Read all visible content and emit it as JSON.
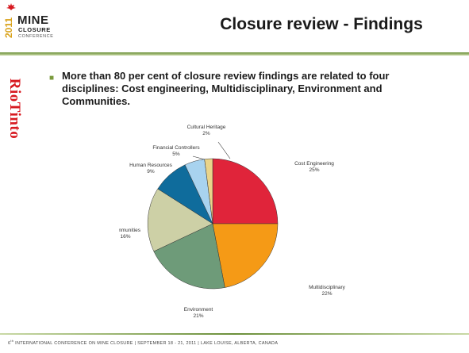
{
  "logo": {
    "year": "2011",
    "name": "MINE",
    "subtitle": "CLOSURE",
    "tagline": "CONFERENCE"
  },
  "slide": {
    "title": "Closure review - Findings",
    "sponsor": "RioTinto",
    "bullet": "More than 80 per cent of closure review findings are related to four disciplines: Cost engineering, Multidisciplinary, Environment and Communities."
  },
  "chart_data": {
    "type": "pie",
    "title": "",
    "slices": [
      {
        "label": "Cost Engineering",
        "value": 25,
        "pct": "25%",
        "color": "#e0243a"
      },
      {
        "label": "Multidisciplinary",
        "value": 22,
        "pct": "22%",
        "color": "#f59a16"
      },
      {
        "label": "Environment",
        "value": 21,
        "pct": "21%",
        "color": "#6e9b79"
      },
      {
        "label": "Communities",
        "value": 16,
        "pct": "16%",
        "color": "#cdd0a6"
      },
      {
        "label": "Human Resources",
        "value": 9,
        "pct": "9%",
        "color": "#0f6c9c"
      },
      {
        "label": "Financial Controllers",
        "value": 5,
        "pct": "5%",
        "color": "#a8d3ef"
      },
      {
        "label": "Cultural Heritage",
        "value": 2,
        "pct": "2%",
        "color": "#e9d48a"
      }
    ]
  },
  "footer": {
    "ordinal": "6",
    "suffix": "th",
    "text": " INTERNATIONAL CONFERENCE ON MINE CLOSURE | SEPTEMBER 18 - 21, 2011 | LAKE LOUISE, ALBERTA, CANADA"
  }
}
